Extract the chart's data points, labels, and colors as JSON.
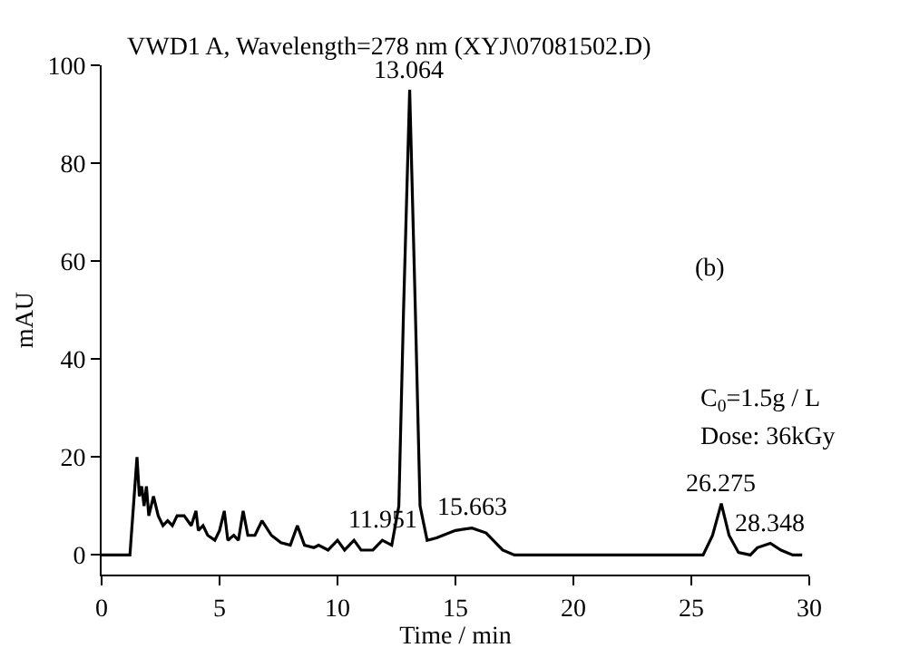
{
  "chart_data": {
    "type": "line",
    "title": "VWD1 A, Wavelength=278 nm (XYJ\\07081502.D)",
    "xlabel": "Time / min",
    "ylabel": "mAU",
    "x": [
      0,
      1.2,
      1.5,
      1.6,
      1.7,
      1.8,
      1.9,
      2.0,
      2.2,
      2.4,
      2.6,
      2.8,
      3.0,
      3.2,
      3.5,
      3.8,
      4.0,
      4.1,
      4.3,
      4.5,
      4.8,
      5.0,
      5.2,
      5.35,
      5.6,
      5.8,
      6.0,
      6.2,
      6.5,
      6.8,
      7.2,
      7.6,
      8.0,
      8.3,
      8.6,
      9.0,
      9.2,
      9.6,
      10.0,
      10.3,
      10.7,
      11.0,
      11.5,
      11.9,
      12.1,
      12.3,
      12.6,
      12.8,
      13.06,
      13.3,
      13.5,
      13.8,
      14.2,
      15.0,
      15.7,
      16.3,
      17.0,
      17.5,
      25.5,
      25.9,
      26.27,
      26.6,
      27.0,
      27.5,
      27.8,
      28.35,
      28.8,
      29.3,
      29.7
    ],
    "series": [
      {
        "color": "#000000",
        "values": [
          0,
          0,
          20,
          12,
          14,
          10,
          14,
          8,
          12,
          8,
          6,
          7,
          6,
          8,
          8,
          6,
          9,
          5,
          6,
          4,
          3,
          5,
          9,
          3,
          4,
          3,
          9,
          4,
          4,
          7,
          4,
          2.5,
          2,
          6,
          2,
          1.5,
          2,
          1,
          3,
          1,
          3,
          1,
          1,
          3,
          2.5,
          2,
          10,
          50,
          95,
          50,
          10,
          3,
          3.5,
          5,
          5.5,
          4.5,
          1,
          0,
          0,
          4,
          10.5,
          4,
          0.5,
          0,
          1.5,
          2.4,
          1,
          0,
          0
        ]
      }
    ],
    "xlim": [
      0,
      30
    ],
    "xticks": [
      0,
      5,
      10,
      15,
      20,
      25,
      30
    ],
    "ylim": [
      -4,
      100
    ],
    "yticks": [
      0,
      20,
      40,
      60,
      80,
      100
    ],
    "marker": "none",
    "line_style": "solid",
    "annotations": [
      {
        "text": "13.064",
        "x": 13.06,
        "y": 95
      },
      {
        "text": "11.951",
        "x": 11.95,
        "y": 3
      },
      {
        "text": "15.663",
        "x": 15.7,
        "y": 5.5
      },
      {
        "text": "26.275",
        "x": 26.27,
        "y": 10.5
      },
      {
        "text": "28.348",
        "x": 28.35,
        "y": 2.4
      },
      "(b)",
      "C$_{0}$=1.5g / L",
      "Dose: 36kGy"
    ]
  }
}
